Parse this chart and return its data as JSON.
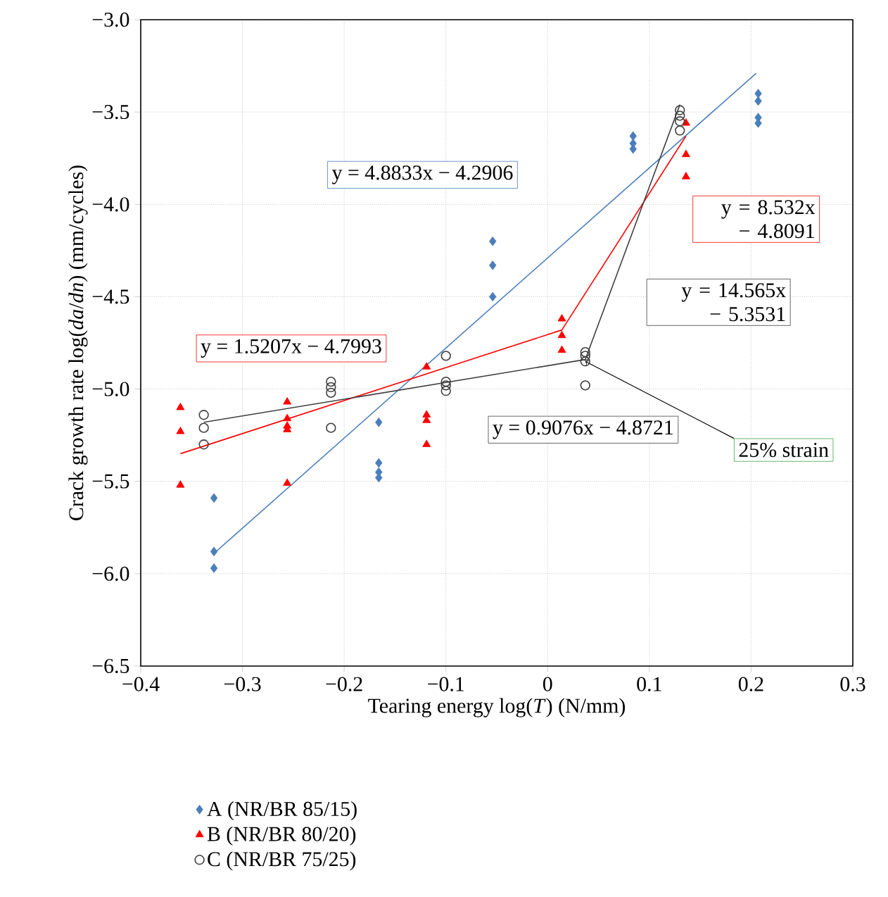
{
  "chart_data": {
    "type": "scatter",
    "xlabel": "Tearing energy log(*T*) (N/mm)",
    "ylabel": "Crack growth rate log(*da*/*dn*) (mm/cycles)",
    "xlim": [
      -0.4,
      0.3
    ],
    "ylim": [
      -6.5,
      -3.0
    ],
    "xticks": [
      {
        "value": -0.4,
        "label": "−0.4"
      },
      {
        "value": -0.3,
        "label": "−0.3"
      },
      {
        "value": -0.2,
        "label": "−0.2"
      },
      {
        "value": -0.1,
        "label": "−0.1"
      },
      0,
      0.1,
      0.2,
      0.3
    ],
    "yticks": [
      {
        "value": -6.5,
        "label": "−6.5"
      },
      {
        "value": -6.0,
        "label": "−6.0"
      },
      {
        "value": -5.5,
        "label": "−5.5"
      },
      {
        "value": -5.0,
        "label": "−5.0"
      },
      {
        "value": -4.5,
        "label": "−4.5"
      },
      {
        "value": -4.0,
        "label": "−4.0"
      },
      {
        "value": -3.5,
        "label": "−3.5"
      },
      {
        "value": -3.0,
        "label": "−3.0"
      }
    ],
    "grid": true,
    "legend": "bottom",
    "series": [
      {
        "name": "A (NR/BR 85/15)",
        "marker": "diamond",
        "color": "#4a7ebb",
        "x": [
          -0.328,
          -0.328,
          -0.328,
          -0.166,
          -0.166,
          -0.166,
          -0.166,
          -0.054,
          -0.054,
          -0.054,
          0.084,
          0.084,
          0.084,
          0.207,
          0.207,
          0.207,
          0.207
        ],
        "values": [
          -5.59,
          -5.88,
          -5.97,
          -5.18,
          -5.4,
          -5.45,
          -5.48,
          -4.2,
          -4.33,
          -4.5,
          -3.63,
          -3.67,
          -3.7,
          -3.4,
          -3.44,
          -3.53,
          -3.56
        ]
      },
      {
        "name": "B (NR/BR 80/20)",
        "marker": "triangle",
        "color": "#ff0000",
        "x": [
          -0.361,
          -0.361,
          -0.361,
          -0.256,
          -0.256,
          -0.256,
          -0.256,
          -0.256,
          -0.119,
          -0.119,
          -0.119,
          -0.119,
          0.014,
          0.014,
          0.014,
          0.136,
          0.136,
          0.136
        ],
        "values": [
          -5.1,
          -5.23,
          -5.52,
          -5.07,
          -5.16,
          -5.2,
          -5.22,
          -5.51,
          -4.88,
          -5.14,
          -5.17,
          -5.3,
          -4.62,
          -4.71,
          -4.79,
          -3.56,
          -3.73,
          -3.85
        ]
      },
      {
        "name": "C (NR/BR 75/25)",
        "marker": "circle",
        "color": "#404040",
        "x": [
          -0.338,
          -0.338,
          -0.338,
          -0.213,
          -0.213,
          -0.213,
          -0.213,
          -0.1,
          -0.1,
          -0.1,
          -0.1,
          0.037,
          0.037,
          0.037,
          0.037,
          0.13,
          0.13,
          0.13,
          0.13
        ],
        "values": [
          -5.14,
          -5.21,
          -5.3,
          -4.96,
          -4.99,
          -5.02,
          -5.21,
          -4.82,
          -4.96,
          -4.98,
          -5.01,
          -4.8,
          -4.82,
          -4.85,
          -4.98,
          -3.49,
          -3.52,
          -3.55,
          -3.6
        ]
      },
      {
        "type": "line",
        "marker": "none",
        "color": "#4a7ebb",
        "x": [
          -0.328,
          0.205
        ],
        "values": [
          -5.89,
          -3.29
        ]
      },
      {
        "type": "line",
        "marker": "none",
        "color": "#ff0000",
        "x": [
          -0.361,
          0.014,
          0.136
        ],
        "values": [
          -5.35,
          -4.68,
          -3.63
        ]
      },
      {
        "type": "line",
        "marker": "none",
        "color": "#404040",
        "x": [
          -0.338,
          0.037,
          0.13
        ],
        "values": [
          -5.18,
          -4.84,
          -3.46
        ]
      }
    ],
    "annotations": [
      "y = 4.8833x − 4.2906",
      "y = 8.532x − 4.8091",
      "y = 14.565x − 5.3531",
      "y = 1.5207x − 4.7993",
      "y = 0.9076x − 4.8721",
      {
        "text": "25% strain",
        "x": 0.037,
        "y": -4.85
      }
    ]
  }
}
